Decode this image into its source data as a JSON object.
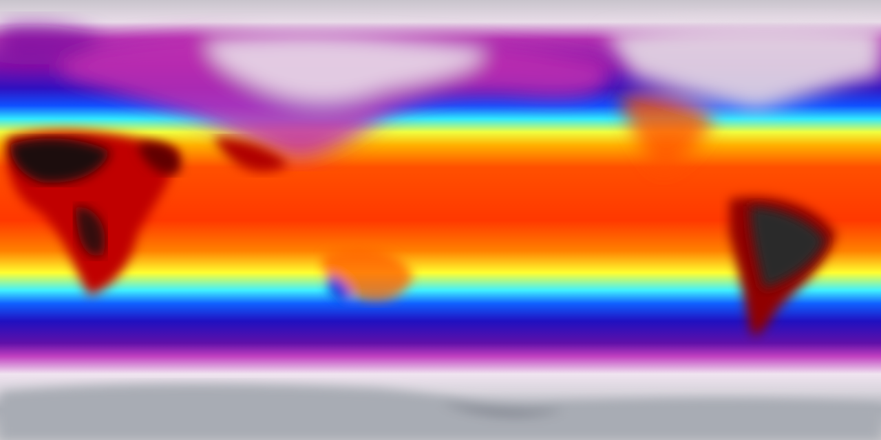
{
  "map": {
    "colormap": [
      "#b0b4bc",
      "#f0e8f0",
      "#c040c0",
      "#8010a0",
      "#2010c8",
      "#1060ff",
      "#30e8ff",
      "#ffff20",
      "#ffa000",
      "#ff3000",
      "#a00000",
      "#303030"
    ],
    "land_colors": {
      "hot_desert": "#1a1010",
      "hot_land": "#c00000",
      "cold_land": "#e8d8e8",
      "ice_sheet": "#a8acb4"
    }
  }
}
